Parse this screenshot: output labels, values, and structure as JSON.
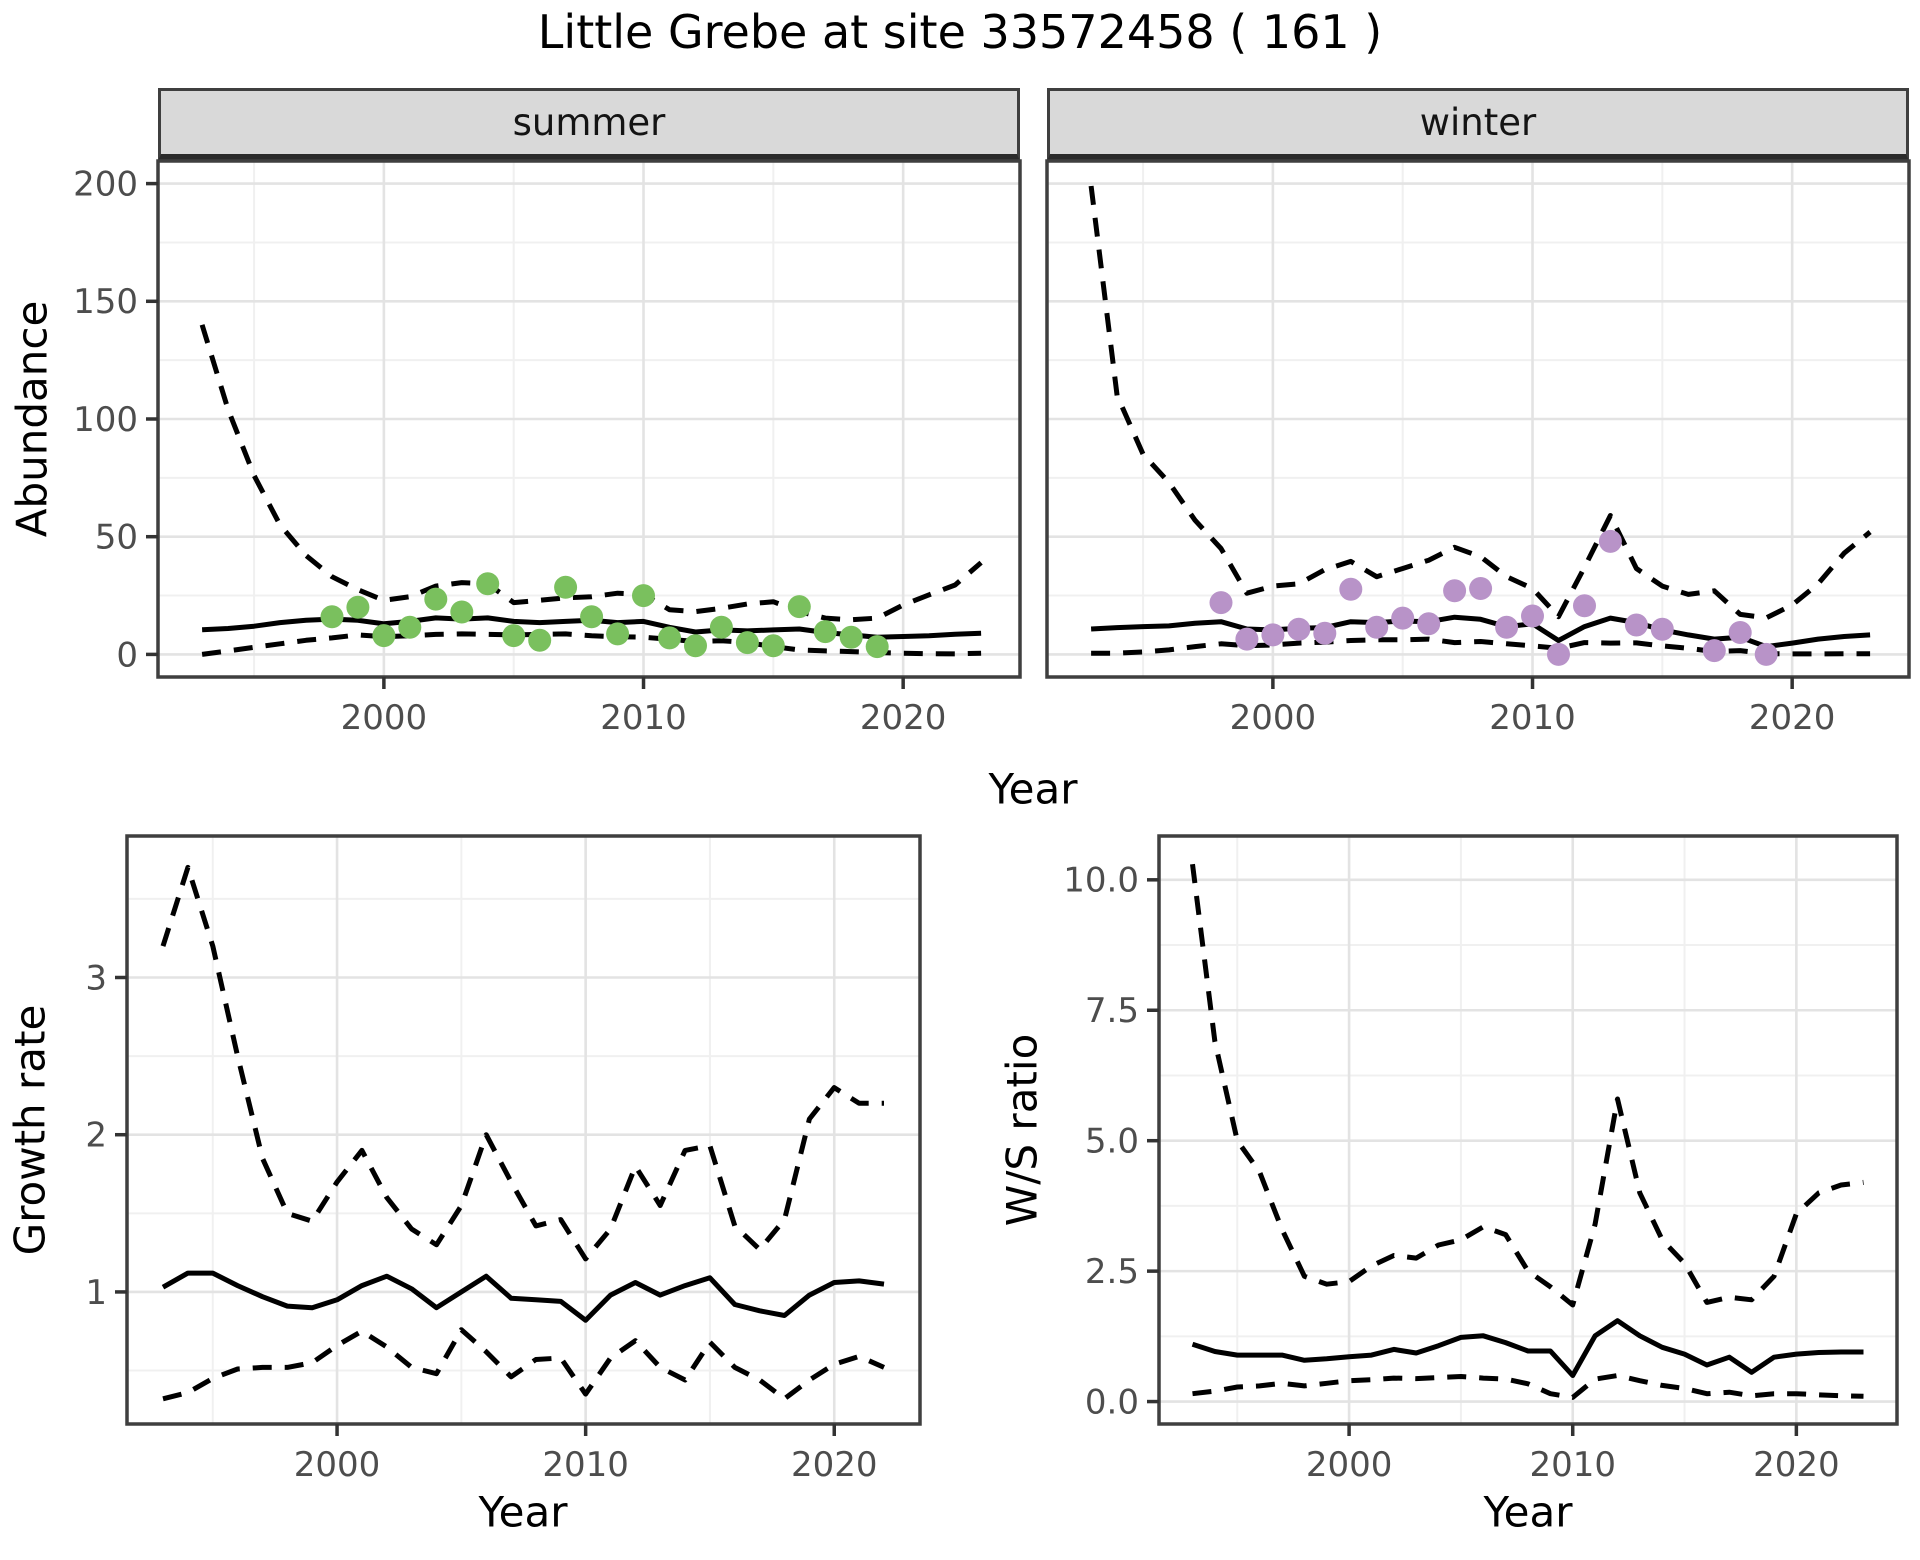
{
  "title": "Little Grebe at site 33572458 ( 161 )",
  "colors": {
    "summer_point": "#7ac05e",
    "winter_point": "#b893c8",
    "line": "#000000",
    "grid_major": "#e3e3e3",
    "grid_minor": "#f0f0f0",
    "panel_border": "#3f3f3f",
    "strip_bg": "#d9d9d9",
    "tick_label": "#4d4d4d",
    "background": "#ffffff"
  },
  "chart_data": [
    {
      "id": "summer-abundance",
      "type": "line",
      "facet_label": "summer",
      "xlabel": "Year",
      "ylabel": "Abundance",
      "xlim": [
        1991.3,
        2024.5
      ],
      "ylim": [
        -9.6,
        209.6
      ],
      "xticks": [
        2000,
        2010,
        2020
      ],
      "xtick_labels": [
        "2000",
        "2010",
        "2020"
      ],
      "yticks": [
        0,
        50,
        100,
        150,
        200
      ],
      "ytick_labels": [
        "0",
        "50",
        "100",
        "150",
        "200"
      ],
      "x_minor": [
        1995,
        2005,
        2015
      ],
      "y_minor": [
        25,
        75,
        125,
        175
      ],
      "x": [
        1993,
        1994,
        1995,
        1996,
        1997,
        1998,
        1999,
        2000,
        2001,
        2002,
        2003,
        2004,
        2005,
        2006,
        2007,
        2008,
        2009,
        2010,
        2011,
        2012,
        2013,
        2014,
        2015,
        2016,
        2017,
        2018,
        2019,
        2020,
        2021,
        2022,
        2023
      ],
      "series": [
        {
          "name": "median",
          "style": "solid",
          "values": [
            10.5,
            11,
            12,
            13.5,
            14.5,
            15,
            14.5,
            13,
            14,
            15.5,
            15,
            15.5,
            14,
            13.5,
            14,
            14.5,
            13.5,
            14,
            11.5,
            9.5,
            10.4,
            10,
            10.4,
            10.8,
            9.3,
            8.3,
            7.3,
            7.6,
            7.9,
            8.6,
            9
          ]
        },
        {
          "name": "upper_ci",
          "style": "dashed",
          "values": [
            140,
            104,
            76,
            55,
            42,
            33,
            27.5,
            23,
            24.5,
            29,
            30.5,
            30,
            22,
            23,
            24,
            24.5,
            26,
            25.5,
            19,
            18.2,
            19.6,
            21.4,
            22.4,
            18.2,
            15.4,
            14.7,
            15.4,
            21,
            25.3,
            29.5,
            39
          ]
        },
        {
          "name": "lower_ci",
          "style": "dashed",
          "values": [
            0,
            1.5,
            3,
            4.5,
            6,
            7,
            8.3,
            7.5,
            7.9,
            8.5,
            8.7,
            8.5,
            8.3,
            8.5,
            8.7,
            7.9,
            7.5,
            7.3,
            6.4,
            5.5,
            5.8,
            5,
            3.3,
            1.9,
            1.5,
            1.2,
            0.8,
            0.5,
            0.3,
            0.2,
            0.5
          ]
        }
      ],
      "points": {
        "color": "#7ac05e",
        "x": [
          1998,
          1999,
          2000,
          2001,
          2002,
          2003,
          2004,
          2005,
          2006,
          2007,
          2008,
          2009,
          2010,
          2011,
          2012,
          2013,
          2014,
          2015,
          2016,
          2017,
          2018,
          2019
        ],
        "y": [
          16,
          20,
          8,
          11.5,
          23.5,
          18,
          30,
          8,
          6,
          28.5,
          16,
          8.7,
          25,
          7,
          3.7,
          11.5,
          5,
          3.7,
          20.3,
          9.7,
          7.3,
          3.3
        ]
      }
    },
    {
      "id": "winter-abundance",
      "type": "line",
      "facet_label": "winter",
      "xlabel": "Year",
      "ylabel": "Abundance",
      "xlim": [
        1991.3,
        2024.5
      ],
      "ylim": [
        -9.6,
        209.6
      ],
      "xticks": [
        2000,
        2010,
        2020
      ],
      "xtick_labels": [
        "2000",
        "2010",
        "2020"
      ],
      "yticks": [
        0,
        50,
        100,
        150,
        200
      ],
      "ytick_labels": [
        "0",
        "50",
        "100",
        "150",
        "200"
      ],
      "x_minor": [
        1995,
        2005,
        2015
      ],
      "y_minor": [
        25,
        75,
        125,
        175
      ],
      "x": [
        1993,
        1994,
        1995,
        1996,
        1997,
        1998,
        1999,
        2000,
        2001,
        2002,
        2003,
        2004,
        2005,
        2006,
        2007,
        2008,
        2009,
        2010,
        2011,
        2012,
        2013,
        2014,
        2015,
        2016,
        2017,
        2018,
        2019,
        2020,
        2021,
        2022,
        2023
      ],
      "series": [
        {
          "name": "median",
          "style": "solid",
          "values": [
            10.8,
            11.4,
            11.8,
            12.1,
            13.2,
            13.9,
            10.8,
            10.4,
            11.1,
            11.4,
            13.9,
            13.5,
            14.2,
            13.9,
            15.8,
            14.9,
            11.8,
            13,
            5.9,
            11.8,
            15.4,
            13.5,
            10.4,
            8.3,
            6.5,
            7.3,
            3.3,
            4.8,
            6.5,
            7.6,
            8.3
          ]
        },
        {
          "name": "upper_ci",
          "style": "dashed",
          "values": [
            199,
            110,
            85,
            73,
            57,
            45,
            26,
            29,
            30,
            36,
            39.5,
            33,
            36.5,
            40,
            45.5,
            41.5,
            33,
            28,
            16,
            37,
            59,
            36.5,
            29,
            25.5,
            27,
            17,
            15.5,
            21,
            30,
            43,
            52
          ]
        },
        {
          "name": "lower_ci",
          "style": "dashed",
          "values": [
            0.5,
            0.5,
            1,
            1.9,
            3.3,
            4.5,
            3.7,
            4,
            4.8,
            5.2,
            5.9,
            6.2,
            6.2,
            6.5,
            5,
            5.5,
            4.5,
            3.6,
            2.6,
            5,
            4.8,
            4.9,
            3.6,
            2.6,
            1.2,
            1.6,
            0.3,
            0.2,
            0.2,
            0.3,
            0.3
          ]
        }
      ],
      "points": {
        "color": "#b893c8",
        "x": [
          1998,
          1999,
          2000,
          2001,
          2002,
          2003,
          2004,
          2005,
          2006,
          2007,
          2008,
          2009,
          2010,
          2011,
          2012,
          2013,
          2014,
          2015,
          2017,
          2018,
          2019
        ],
        "y": [
          22,
          6.5,
          8.3,
          10.7,
          9,
          27.7,
          11.5,
          15.4,
          13,
          27,
          28,
          11.5,
          16.3,
          0,
          20.7,
          48,
          12.5,
          10.7,
          1.6,
          9.3,
          0
        ]
      }
    },
    {
      "id": "growth-rate",
      "type": "line",
      "facet_label": "",
      "xlabel": "Year",
      "ylabel": "Growth rate",
      "xlim": [
        1991.55,
        2023.45
      ],
      "ylim": [
        0.16,
        3.9
      ],
      "xticks": [
        2000,
        2010,
        2020
      ],
      "xtick_labels": [
        "2000",
        "2010",
        "2020"
      ],
      "yticks": [
        1,
        2,
        3
      ],
      "ytick_labels": [
        "1",
        "2",
        "3"
      ],
      "x_minor": [
        1995,
        2005,
        2015
      ],
      "y_minor": [
        0.5,
        1.5,
        2.5,
        3.5
      ],
      "x": [
        1993,
        1994,
        1995,
        1996,
        1997,
        1998,
        1999,
        2000,
        2001,
        2002,
        2003,
        2004,
        2005,
        2006,
        2007,
        2008,
        2009,
        2010,
        2011,
        2012,
        2013,
        2014,
        2015,
        2016,
        2017,
        2018,
        2019,
        2020,
        2021,
        2022
      ],
      "series": [
        {
          "name": "median",
          "style": "solid",
          "values": [
            1.03,
            1.12,
            1.12,
            1.04,
            0.97,
            0.91,
            0.9,
            0.95,
            1.04,
            1.1,
            1.02,
            0.9,
            1,
            1.1,
            0.96,
            0.95,
            0.94,
            0.82,
            0.98,
            1.06,
            0.98,
            1.04,
            1.09,
            0.92,
            0.88,
            0.85,
            0.98,
            1.06,
            1.07,
            1.05
          ]
        },
        {
          "name": "upper_ci",
          "style": "dashed",
          "values": [
            3.2,
            3.7,
            3.2,
            2.5,
            1.85,
            1.5,
            1.45,
            1.7,
            1.9,
            1.6,
            1.4,
            1.3,
            1.55,
            2,
            1.7,
            1.42,
            1.46,
            1.21,
            1.4,
            1.8,
            1.55,
            1.9,
            1.93,
            1.42,
            1.27,
            1.46,
            2.1,
            2.3,
            2.2,
            2.2
          ]
        },
        {
          "name": "lower_ci",
          "style": "dashed",
          "values": [
            0.32,
            0.36,
            0.45,
            0.51,
            0.52,
            0.52,
            0.55,
            0.66,
            0.75,
            0.65,
            0.52,
            0.48,
            0.76,
            0.62,
            0.46,
            0.57,
            0.58,
            0.35,
            0.58,
            0.69,
            0.52,
            0.44,
            0.68,
            0.52,
            0.44,
            0.32,
            0.44,
            0.54,
            0.59,
            0.52
          ]
        }
      ],
      "points": null
    },
    {
      "id": "ws-ratio",
      "type": "line",
      "facet_label": "",
      "xlabel": "Year",
      "ylabel": "W/S ratio",
      "xlim": [
        1991.5,
        2024.5
      ],
      "ylim": [
        -0.43,
        10.84
      ],
      "xticks": [
        2000,
        2010,
        2020
      ],
      "xtick_labels": [
        "2000",
        "2010",
        "2020"
      ],
      "yticks": [
        0,
        2.5,
        5,
        7.5,
        10
      ],
      "ytick_labels": [
        "0.0",
        "2.5",
        "5.0",
        "7.5",
        "10.0"
      ],
      "x_minor": [
        1995,
        2005,
        2015
      ],
      "y_minor": [
        1.25,
        3.75,
        6.25,
        8.75
      ],
      "x": [
        1993,
        1994,
        1995,
        1996,
        1997,
        1998,
        1999,
        2000,
        2001,
        2002,
        2003,
        2004,
        2005,
        2006,
        2007,
        2008,
        2009,
        2010,
        2011,
        2012,
        2013,
        2014,
        2015,
        2016,
        2017,
        2018,
        2019,
        2020,
        2021,
        2022,
        2023
      ],
      "series": [
        {
          "name": "median",
          "style": "solid",
          "values": [
            1.1,
            0.96,
            0.89,
            0.89,
            0.89,
            0.79,
            0.82,
            0.86,
            0.89,
            1,
            0.93,
            1.07,
            1.23,
            1.26,
            1.13,
            0.97,
            0.97,
            0.5,
            1.26,
            1.55,
            1.26,
            1.04,
            0.91,
            0.7,
            0.85,
            0.56,
            0.85,
            0.91,
            0.94,
            0.95,
            0.95
          ]
        },
        {
          "name": "upper_ci",
          "style": "dashed",
          "values": [
            10.3,
            6.9,
            5,
            4.4,
            3.3,
            2.4,
            2.25,
            2.3,
            2.6,
            2.8,
            2.75,
            3,
            3.1,
            3.35,
            3.2,
            2.5,
            2.2,
            1.85,
            3.4,
            5.8,
            4,
            3.1,
            2.65,
            1.9,
            2,
            1.95,
            2.4,
            3.6,
            4,
            4.15,
            4.2
          ]
        },
        {
          "name": "lower_ci",
          "style": "dashed",
          "values": [
            0.15,
            0.2,
            0.28,
            0.3,
            0.35,
            0.3,
            0.35,
            0.4,
            0.42,
            0.45,
            0.44,
            0.46,
            0.48,
            0.45,
            0.43,
            0.34,
            0.15,
            0.08,
            0.43,
            0.5,
            0.4,
            0.31,
            0.25,
            0.15,
            0.18,
            0.11,
            0.15,
            0.15,
            0.13,
            0.11,
            0.1
          ]
        }
      ],
      "points": null
    }
  ]
}
